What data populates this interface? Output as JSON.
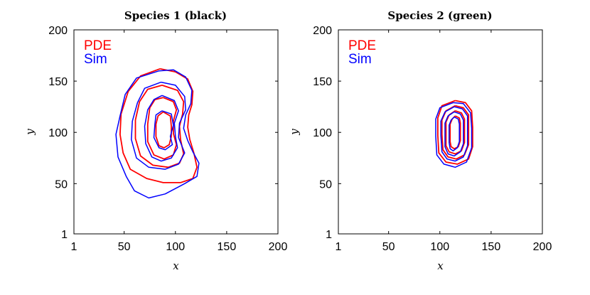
{
  "chart_data": [
    {
      "type": "line",
      "title": "Species 1 (black)",
      "xlabel": "x",
      "ylabel": "y",
      "xlim": [
        1,
        200
      ],
      "ylim": [
        1,
        200
      ],
      "xticks": [
        1,
        50,
        100,
        150,
        200
      ],
      "yticks": [
        1,
        50,
        100,
        150,
        200
      ],
      "legend": {
        "position": "top-left",
        "entries": [
          {
            "label": "PDE",
            "color": "#ff0000"
          },
          {
            "label": "Sim",
            "color": "#0000ff"
          }
        ]
      },
      "series": [
        {
          "name": "PDE",
          "color": "#ff0000",
          "contours": [
            [
              [
                85,
                162
              ],
              [
                100,
                159
              ],
              [
                112,
                152
              ],
              [
                117,
                140
              ],
              [
                116,
                127
              ],
              [
                113,
                117
              ],
              [
                112,
                105
              ],
              [
                114,
                93
              ],
              [
                118,
                80
              ],
              [
                121,
                66
              ],
              [
                117,
                55
              ],
              [
                105,
                51
              ],
              [
                88,
                51
              ],
              [
                72,
                55
              ],
              [
                56,
                64
              ],
              [
                49,
                80
              ],
              [
                46,
                98
              ],
              [
                47,
                118
              ],
              [
                54,
                140
              ],
              [
                66,
                155
              ],
              [
                85,
                162
              ]
            ],
            [
              [
                87,
                146
              ],
              [
                102,
                141
              ],
              [
                108,
                130
              ],
              [
                107,
                118
              ],
              [
                104,
                106
              ],
              [
                105,
                93
              ],
              [
                108,
                79
              ],
              [
                104,
                70
              ],
              [
                93,
                66
              ],
              [
                78,
                68
              ],
              [
                66,
                77
              ],
              [
                61,
                94
              ],
              [
                61,
                112
              ],
              [
                65,
                130
              ],
              [
                73,
                142
              ],
              [
                87,
                146
              ]
            ],
            [
              [
                88,
                134
              ],
              [
                98,
                130
              ],
              [
                101,
                122
              ],
              [
                98,
                111
              ],
              [
                98,
                99
              ],
              [
                101,
                88
              ],
              [
                98,
                78
              ],
              [
                89,
                74
              ],
              [
                79,
                78
              ],
              [
                73,
                91
              ],
              [
                73,
                108
              ],
              [
                75,
                124
              ],
              [
                80,
                132
              ],
              [
                88,
                134
              ]
            ],
            [
              [
                88,
                120
              ],
              [
                95,
                116
              ],
              [
                96,
                106
              ],
              [
                96,
                96
              ],
              [
                94,
                88
              ],
              [
                89,
                85
              ],
              [
                84,
                87
              ],
              [
                81,
                96
              ],
              [
                81,
                108
              ],
              [
                83,
                116
              ],
              [
                88,
                120
              ]
            ]
          ]
        },
        {
          "name": "Sim",
          "color": "#0000ff",
          "contours": [
            [
              [
                84,
                160
              ],
              [
                98,
                161
              ],
              [
                110,
                154
              ],
              [
                116,
                141
              ],
              [
                115,
                128
              ],
              [
                110,
                117
              ],
              [
                108,
                104
              ],
              [
                112,
                92
              ],
              [
                117,
                81
              ],
              [
                123,
                70
              ],
              [
                121,
                57
              ],
              [
                109,
                50
              ],
              [
                90,
                40
              ],
              [
                74,
                36
              ],
              [
                60,
                43
              ],
              [
                52,
                57
              ],
              [
                44,
                76
              ],
              [
                42,
                98
              ],
              [
                46,
                116
              ],
              [
                51,
                137
              ],
              [
                62,
                153
              ],
              [
                84,
                160
              ]
            ],
            [
              [
                86,
                149
              ],
              [
                100,
                146
              ],
              [
                109,
                135
              ],
              [
                110,
                122
              ],
              [
                104,
                109
              ],
              [
                103,
                95
              ],
              [
                109,
                80
              ],
              [
                103,
                69
              ],
              [
                90,
                64
              ],
              [
                74,
                66
              ],
              [
                62,
                75
              ],
              [
                57,
                93
              ],
              [
                58,
                111
              ],
              [
                63,
                129
              ],
              [
                70,
                143
              ],
              [
                86,
                149
              ]
            ],
            [
              [
                87,
                136
              ],
              [
                99,
                131
              ],
              [
                103,
                121
              ],
              [
                99,
                109
              ],
              [
                100,
                96
              ],
              [
                102,
                85
              ],
              [
                96,
                75
              ],
              [
                86,
                72
              ],
              [
                77,
                76
              ],
              [
                71,
                89
              ],
              [
                70,
                106
              ],
              [
                73,
                122
              ],
              [
                79,
                132
              ],
              [
                87,
                136
              ]
            ],
            [
              [
                87,
                121
              ],
              [
                96,
                118
              ],
              [
                98,
                107
              ],
              [
                95,
                96
              ],
              [
                97,
                88
              ],
              [
                90,
                83
              ],
              [
                84,
                85
              ],
              [
                79,
                95
              ],
              [
                80,
                108
              ],
              [
                81,
                117
              ],
              [
                87,
                121
              ]
            ]
          ]
        }
      ]
    },
    {
      "type": "line",
      "title": "Species 2 (green)",
      "xlabel": "x",
      "ylabel": "y",
      "xlim": [
        1,
        200
      ],
      "ylim": [
        1,
        200
      ],
      "xticks": [
        1,
        50,
        100,
        150,
        200
      ],
      "yticks": [
        1,
        50,
        100,
        150,
        200
      ],
      "legend": {
        "position": "top-left",
        "entries": [
          {
            "label": "PDE",
            "color": "#ff0000"
          },
          {
            "label": "Sim",
            "color": "#0000ff"
          }
        ]
      },
      "series": [
        {
          "name": "PDE",
          "color": "#ff0000",
          "contours": [
            [
              [
                115,
                131
              ],
              [
                125,
                129
              ],
              [
                131,
                121
              ],
              [
                132,
                105
              ],
              [
                132,
                86
              ],
              [
                128,
                74
              ],
              [
                117,
                69
              ],
              [
                106,
                71
              ],
              [
                99,
                80
              ],
              [
                98,
                97
              ],
              [
                98,
                114
              ],
              [
                102,
                126
              ],
              [
                115,
                131
              ]
            ],
            [
              [
                115,
                126
              ],
              [
                123,
                124
              ],
              [
                128,
                117
              ],
              [
                128,
                103
              ],
              [
                128,
                88
              ],
              [
                124,
                78
              ],
              [
                116,
                74
              ],
              [
                108,
                76
              ],
              [
                103,
                83
              ],
              [
                102,
                98
              ],
              [
                102,
                112
              ],
              [
                106,
                121
              ],
              [
                115,
                126
              ]
            ],
            [
              [
                115,
                121
              ],
              [
                121,
                119
              ],
              [
                124,
                113
              ],
              [
                124,
                101
              ],
              [
                124,
                90
              ],
              [
                121,
                82
              ],
              [
                115,
                79
              ],
              [
                109,
                81
              ],
              [
                106,
                87
              ],
              [
                106,
                99
              ],
              [
                106,
                110
              ],
              [
                109,
                117
              ],
              [
                115,
                121
              ]
            ],
            [
              [
                115,
                116
              ],
              [
                119,
                114
              ],
              [
                120,
                109
              ],
              [
                120,
                100
              ],
              [
                120,
                92
              ],
              [
                118,
                86
              ],
              [
                114,
                84
              ],
              [
                111,
                86
              ],
              [
                110,
                91
              ],
              [
                110,
                100
              ],
              [
                110,
                108
              ],
              [
                112,
                113
              ],
              [
                115,
                116
              ]
            ]
          ]
        },
        {
          "name": "Sim",
          "color": "#0000ff",
          "contours": [
            [
              [
                113,
                129
              ],
              [
                123,
                128
              ],
              [
                130,
                119
              ],
              [
                131,
                104
              ],
              [
                131,
                85
              ],
              [
                126,
                71
              ],
              [
                115,
                66
              ],
              [
                104,
                69
              ],
              [
                97,
                78
              ],
              [
                96,
                96
              ],
              [
                96,
                113
              ],
              [
                100,
                124
              ],
              [
                113,
                129
              ]
            ],
            [
              [
                114,
                125
              ],
              [
                122,
                123
              ],
              [
                127,
                116
              ],
              [
                127,
                102
              ],
              [
                127,
                87
              ],
              [
                123,
                76
              ],
              [
                115,
                72
              ],
              [
                107,
                74
              ],
              [
                102,
                81
              ],
              [
                101,
                97
              ],
              [
                101,
                111
              ],
              [
                105,
                120
              ],
              [
                114,
                125
              ]
            ],
            [
              [
                114,
                120
              ],
              [
                120,
                118
              ],
              [
                123,
                112
              ],
              [
                123,
                100
              ],
              [
                123,
                89
              ],
              [
                120,
                81
              ],
              [
                114,
                77
              ],
              [
                108,
                79
              ],
              [
                105,
                86
              ],
              [
                105,
                98
              ],
              [
                105,
                109
              ],
              [
                108,
                116
              ],
              [
                114,
                120
              ]
            ],
            [
              [
                114,
                115
              ],
              [
                118,
                113
              ],
              [
                119,
                108
              ],
              [
                119,
                99
              ],
              [
                119,
                91
              ],
              [
                117,
                85
              ],
              [
                113,
                82
              ],
              [
                110,
                84
              ],
              [
                109,
                90
              ],
              [
                109,
                99
              ],
              [
                109,
                107
              ],
              [
                111,
                112
              ],
              [
                114,
                115
              ]
            ]
          ]
        }
      ]
    }
  ]
}
